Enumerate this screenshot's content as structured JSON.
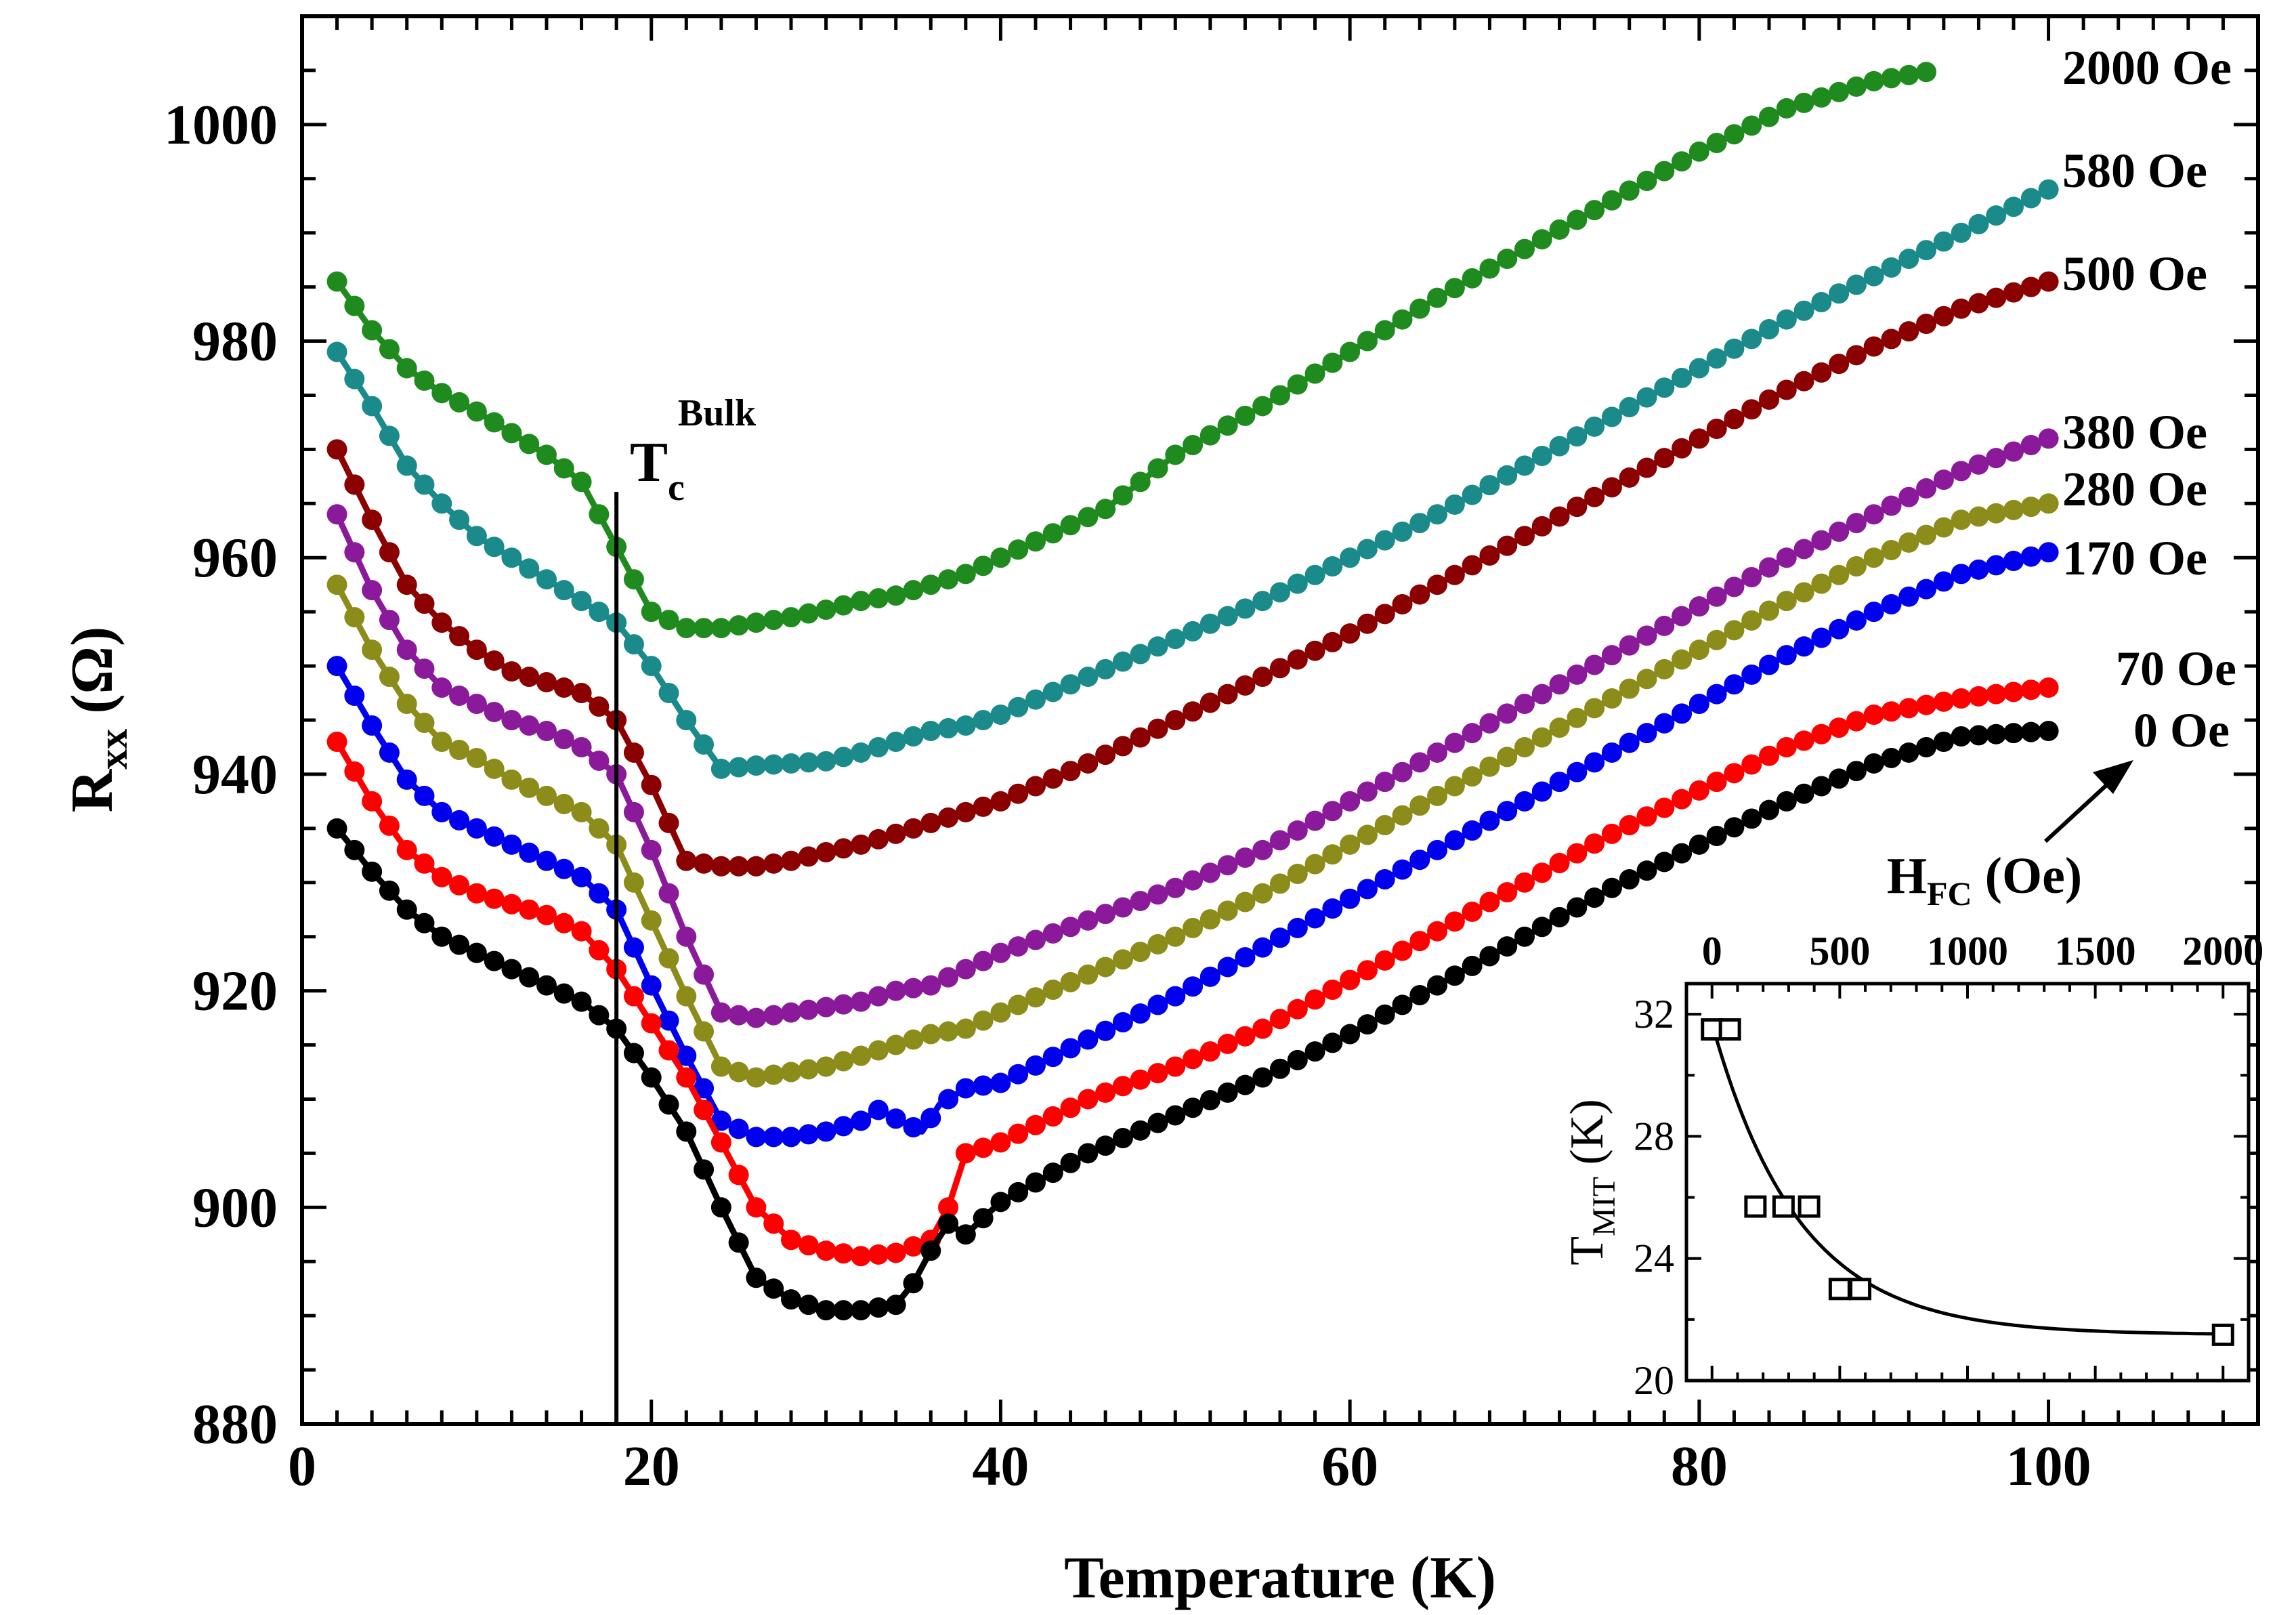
{
  "chart_data": [
    {
      "type": "line",
      "title": "",
      "xlabel": "Temperature (K)",
      "ylabel_main": "R",
      "ylabel_sub": "xx",
      "ylabel_unit": " (Ω)",
      "xlim": [
        0,
        112
      ],
      "ylim": [
        880,
        1010
      ],
      "xticks": [
        0,
        20,
        40,
        60,
        80,
        100
      ],
      "yticks": [
        880,
        900,
        920,
        940,
        960,
        980,
        1000
      ],
      "grid": false,
      "annotation": {
        "label_main": "T",
        "label_sub": "c",
        "label_sup": "Bulk",
        "x": 18
      },
      "series": [
        {
          "name": "2000 Oe",
          "color": "#1f8b1f",
          "x": [
            2,
            4,
            6,
            8,
            10,
            12,
            14,
            16,
            18,
            20,
            22,
            24,
            26,
            28,
            30,
            32,
            34,
            36,
            38,
            40,
            42,
            44,
            46,
            48,
            50,
            55,
            60,
            65,
            70,
            75,
            80,
            85,
            90,
            93.5
          ],
          "y": [
            985.5,
            981,
            977.5,
            975.2,
            973.5,
            971.5,
            969.5,
            967,
            961,
            955,
            953.5,
            953.5,
            954,
            954.5,
            955.2,
            956,
            956.5,
            957.5,
            958.5,
            960,
            961.5,
            963,
            964.5,
            967,
            969.5,
            974,
            979,
            984,
            988.5,
            993,
            997.5,
            1001.5,
            1004,
            1005
          ]
        },
        {
          "name": "580 Oe",
          "color": "#1a8a8a",
          "x": [
            2,
            4,
            6,
            8,
            10,
            12,
            14,
            16,
            18,
            20,
            22,
            24,
            26,
            28,
            30,
            32,
            34,
            36,
            38,
            40,
            45,
            50,
            55,
            60,
            65,
            70,
            75,
            80,
            85,
            90,
            95,
            100
          ],
          "y": [
            979,
            974,
            968.5,
            965,
            962,
            960,
            958,
            956,
            954,
            950,
            945,
            940.5,
            940.8,
            941,
            941.2,
            942,
            943,
            944,
            944.5,
            945.5,
            949,
            952.5,
            956,
            960,
            964,
            968.5,
            973,
            977.5,
            982,
            986,
            990,
            994
          ]
        },
        {
          "name": "500 Oe",
          "color": "#8b0000",
          "x": [
            2,
            4,
            6,
            8,
            10,
            12,
            14,
            16,
            18,
            20,
            22,
            24,
            26,
            28,
            30,
            32,
            34,
            36,
            38,
            40,
            45,
            50,
            55,
            60,
            65,
            70,
            75,
            80,
            85,
            90,
            95,
            100
          ],
          "y": [
            970,
            963.5,
            957.5,
            954,
            951.5,
            949.5,
            948.5,
            947.5,
            945,
            939,
            932,
            931.5,
            931.5,
            932,
            932.8,
            933.5,
            934.5,
            935.5,
            936.5,
            937.5,
            941,
            945,
            949,
            953,
            957.5,
            962,
            966.5,
            971,
            975.5,
            979.5,
            983,
            985.5
          ]
        },
        {
          "name": "380 Oe",
          "color": "#8b1a9b",
          "x": [
            2,
            4,
            6,
            8,
            10,
            12,
            14,
            16,
            18,
            20,
            22,
            24,
            26,
            28,
            30,
            32,
            34,
            36,
            38,
            40,
            45,
            50,
            55,
            60,
            65,
            70,
            75,
            80,
            85,
            90,
            95,
            100
          ],
          "y": [
            964,
            957,
            951.5,
            948,
            946.5,
            945,
            944,
            942.5,
            940,
            933,
            925,
            918,
            917.5,
            918,
            918.5,
            919,
            920,
            920.5,
            922,
            923.5,
            926.5,
            929.5,
            933,
            937.5,
            942,
            946.5,
            951,
            955.5,
            960,
            964,
            968,
            971
          ]
        },
        {
          "name": "280 Oe",
          "color": "#8c8c1a",
          "x": [
            2,
            4,
            6,
            8,
            10,
            12,
            14,
            16,
            18,
            20,
            22,
            24,
            26,
            28,
            30,
            32,
            34,
            36,
            38,
            40,
            45,
            50,
            55,
            60,
            65,
            70,
            75,
            80,
            85,
            90,
            95,
            100
          ],
          "y": [
            957.5,
            951.5,
            946.5,
            943,
            941.5,
            939.5,
            938,
            936.5,
            933.5,
            926.5,
            919.5,
            913,
            912,
            912.5,
            913,
            914,
            915,
            916,
            916.5,
            918,
            921.5,
            925,
            929,
            933.5,
            938,
            942.5,
            947,
            951.5,
            956,
            960,
            963.5,
            965
          ]
        },
        {
          "name": "170 Oe",
          "color": "#0000ee",
          "x": [
            2,
            4,
            6,
            8,
            10,
            12,
            14,
            16,
            18,
            20,
            22,
            24,
            26,
            28,
            30,
            32,
            33,
            35.5,
            36.5,
            38,
            40,
            45,
            50,
            55,
            60,
            65,
            70,
            75,
            80,
            85,
            90,
            95,
            100
          ],
          "y": [
            950,
            944.5,
            939.5,
            936.5,
            935,
            933.5,
            932,
            930.5,
            927.5,
            920.5,
            914,
            908,
            906.5,
            906.5,
            907,
            908,
            909,
            907,
            909.5,
            911,
            911.5,
            915.5,
            919.5,
            924,
            928.5,
            933,
            937.5,
            942,
            946.5,
            951,
            955,
            958.5,
            960.5
          ]
        },
        {
          "name": "70 Oe",
          "color": "#ff0000",
          "x": [
            2,
            4,
            6,
            8,
            10,
            12,
            14,
            16,
            18,
            20,
            22,
            24,
            26,
            28,
            30,
            32,
            34,
            36,
            37,
            38,
            40,
            45,
            50,
            55,
            60,
            65,
            70,
            75,
            80,
            85,
            90,
            95,
            100
          ],
          "y": [
            943,
            937.5,
            933,
            930.5,
            929,
            928,
            927,
            925.5,
            922,
            917,
            912,
            906,
            900,
            897,
            896,
            895.5,
            895.8,
            897,
            900,
            905,
            906,
            910,
            913,
            916.5,
            921,
            925.5,
            930,
            934.5,
            938.5,
            942.5,
            945.5,
            947,
            948
          ]
        },
        {
          "name": "0 Oe",
          "color": "#000000",
          "x": [
            2,
            4,
            6,
            8,
            10,
            12,
            14,
            16,
            18,
            20,
            22,
            24,
            26,
            28,
            30,
            32,
            34,
            35,
            36,
            37,
            38,
            40,
            45,
            50,
            55,
            60,
            65,
            70,
            75,
            80,
            85,
            90,
            95,
            100
          ],
          "y": [
            935,
            931,
            927.5,
            925,
            923.5,
            922,
            920.5,
            919,
            916.5,
            912,
            907,
            900,
            893.5,
            891.5,
            890.5,
            890.5,
            891,
            893,
            896,
            898.5,
            897.5,
            900.5,
            905,
            908.5,
            912,
            916,
            920.5,
            925,
            929.5,
            933.5,
            937.5,
            941,
            943.5,
            944
          ]
        }
      ]
    },
    {
      "type": "scatter",
      "title": "",
      "xlabel_main": "H",
      "xlabel_sub": "FC",
      "xlabel_unit": " (Oe)",
      "ylabel_main": "T",
      "ylabel_sub": "MIT",
      "ylabel_unit": " (K)",
      "xlim": [
        -100,
        2100
      ],
      "ylim": [
        20,
        33
      ],
      "xticks": [
        0,
        500,
        1000,
        1500,
        2000
      ],
      "yticks": [
        20,
        24,
        28,
        32
      ],
      "grid": false,
      "points": {
        "x": [
          0,
          70,
          170,
          280,
          380,
          500,
          580,
          2000
        ],
        "y": [
          31.5,
          31.5,
          25.7,
          25.7,
          25.7,
          23.0,
          23.0,
          21.5
        ]
      },
      "fit": {
        "type": "exponential",
        "y0": 21.5,
        "A": 10.2,
        "tau": 340
      }
    }
  ],
  "figure": {
    "arrow_color": "#000000"
  }
}
